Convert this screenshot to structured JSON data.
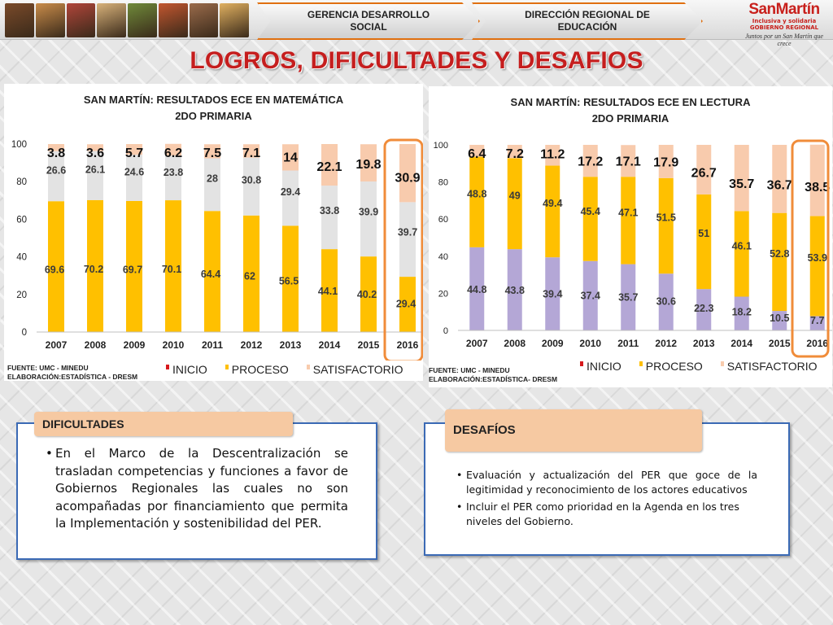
{
  "header": {
    "tag_left": "GERENCIA DESARROLLO SOCIAL",
    "tag_right": "DIRECCIÓN REGIONAL DE EDUCACIÓN",
    "logo_brand": "SanMartín",
    "logo_sub1": "Inclusiva y solidaria",
    "logo_sub2": "GOBIERNO REGIONAL",
    "logo_motto": "Juntos por un San Martín que crece",
    "photo_colors": [
      "#7a4a2a",
      "#c98c4a",
      "#b0453a",
      "#d8b27a",
      "#6f8a3a",
      "#c2562f",
      "#9a6b4b",
      "#e0b060"
    ]
  },
  "page_title": "LOGROS, DIFICULTADES Y DESAFIOS",
  "colors": {
    "inicio": "#d7191c",
    "proceso": "#ffc000",
    "proceso_light": "#dfd1ff",
    "satisfactorio": "#f8cbad",
    "highlight": "#f08c3a"
  },
  "chart_data": [
    {
      "type": "bar",
      "stacked": true,
      "title": "SAN MARTÍN: RESULTADOS ECE EN MATEMÁTICA",
      "subtitle": "2DO PRIMARIA",
      "categories": [
        "2007",
        "2008",
        "2009",
        "2010",
        "2011",
        "2012",
        "2013",
        "2014",
        "2015",
        "2016"
      ],
      "ylim": [
        0,
        100
      ],
      "yticks": [
        0,
        20,
        40,
        60,
        80,
        100
      ],
      "grid": false,
      "highlighted_category": "2016",
      "series": [
        {
          "name": "INICIO",
          "values": [
            69.6,
            70.2,
            69.7,
            70.1,
            64.4,
            62,
            56.5,
            44.1,
            40.2,
            29.4
          ]
        },
        {
          "name": "PROCESO",
          "values": [
            26.6,
            26.1,
            24.6,
            23.8,
            28,
            30.8,
            29.4,
            33.8,
            39.9,
            39.7
          ]
        },
        {
          "name": "SATISFACTORIO",
          "values": [
            3.8,
            3.6,
            5.7,
            6.2,
            7.5,
            7.1,
            14,
            22.1,
            19.8,
            30.9
          ]
        }
      ],
      "labels": {
        "bottom": [
          "69.6",
          "70.2",
          "69.7",
          "70.1",
          "64.4",
          "62",
          "56.5",
          "44.1",
          "40.2",
          "29.4"
        ],
        "middle": [
          "26.6",
          "26.1",
          "24.6",
          "23.8",
          "28",
          "30.8",
          "29.4",
          "33.8",
          "39.9",
          "39.7"
        ],
        "top": [
          "3.8",
          "3.6",
          "5.7",
          "6.2",
          "7.5",
          "7.1",
          "14",
          "22.1",
          "19.8",
          "30.9"
        ]
      },
      "source_line1": "FUENTE: UMC - MINEDU",
      "source_line2": "ELABORACIÓN:ESTADÍSTICA - DRESM",
      "legend": [
        "INICIO",
        "PROCESO",
        "SATISFACTORIO"
      ],
      "legend_position": "bottom"
    },
    {
      "type": "bar",
      "stacked": true,
      "title": "SAN MARTÍN: RESULTADOS ECE EN LECTURA",
      "subtitle": "2DO PRIMARIA",
      "categories": [
        "2007",
        "2008",
        "2009",
        "2010",
        "2011",
        "2012",
        "2013",
        "2014",
        "2015",
        "2016"
      ],
      "ylim": [
        0,
        100
      ],
      "yticks": [
        0,
        20,
        40,
        60,
        80,
        100
      ],
      "grid": false,
      "highlighted_category": "2016",
      "series": [
        {
          "name": "INICIO",
          "values": [
            44.8,
            43.8,
            39.4,
            37.4,
            35.7,
            30.6,
            22.3,
            18.2,
            10.5,
            7.7
          ]
        },
        {
          "name": "PROCESO",
          "values": [
            48.8,
            49,
            49.4,
            45.4,
            47.1,
            51.5,
            51,
            46.1,
            52.8,
            53.9
          ]
        },
        {
          "name": "SATISFACTORIO",
          "values": [
            6.4,
            7.2,
            11.2,
            17.2,
            17.1,
            17.9,
            26.7,
            35.7,
            36.7,
            38.5
          ]
        }
      ],
      "labels": {
        "bottom": [
          "44.8",
          "43.8",
          "39.4",
          "37.4",
          "35.7",
          "30.6",
          "22.3",
          "18.2",
          "10.5",
          "7.7"
        ],
        "middle": [
          "48.8",
          "49",
          "49.4",
          "45.4",
          "47.1",
          "51.5",
          "51",
          "46.1",
          "52.8",
          "53.9"
        ],
        "top": [
          "6.4",
          "7.2",
          "11.2",
          "17.2",
          "17.1",
          "17.9",
          "26.7",
          "35.7",
          "36.7",
          "38.5"
        ]
      },
      "source_line1": "FUENTE: UMC - MINEDU",
      "source_line2": "ELABORACIÓN:ESTADÍSTICA- DRESM",
      "legend": [
        "INICIO",
        "PROCESO",
        "SATISFACTORIO"
      ],
      "legend_position": "bottom"
    }
  ],
  "dificultades": {
    "heading": "DIFICULTADES",
    "items": [
      "En el Marco de la Descentralización se trasladan competencias y funciones a favor de Gobiernos Regionales las cuales no son acompañadas por financiamiento que permita la Implementación y sostenibilidad del PER."
    ]
  },
  "desafios": {
    "heading": "DESAFÍOS",
    "items": [
      "Evaluación y actualización del PER que goce de la legitimidad y reconocimiento de los actores educativos",
      "Incluir el PER como prioridad en la Agenda en los tres niveles del Gobierno."
    ]
  }
}
